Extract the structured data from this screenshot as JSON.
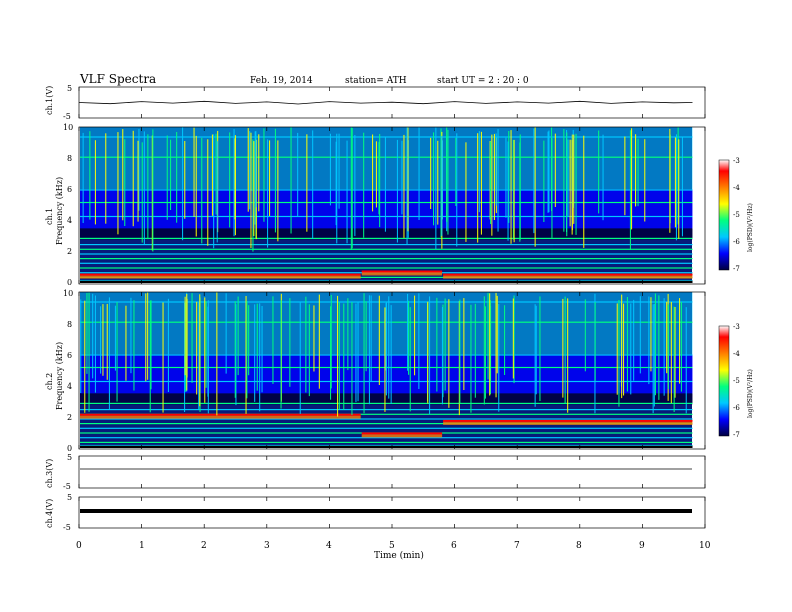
{
  "header": {
    "title": "VLF  Spectra",
    "date": "Feb. 19, 2014",
    "station": "station= ATH",
    "start": "start  UT  =   2  : 20 : 0"
  },
  "chart_data": [
    {
      "type": "line",
      "panel": "ch1-waveform",
      "ylabel": "ch.1(V)",
      "ylim": [
        -5,
        5
      ],
      "yticks": [
        "5",
        "-5"
      ],
      "x": [
        0,
        0.5,
        1,
        1.5,
        2,
        2.5,
        3,
        3.5,
        4,
        4.5,
        5,
        5.5,
        6,
        6.5,
        7,
        7.5,
        8,
        8.5,
        9,
        9.5,
        9.8
      ],
      "y": [
        0.0,
        -0.4,
        0.3,
        -0.2,
        0.4,
        -0.3,
        0.2,
        -0.5,
        0.3,
        -0.2,
        0.1,
        -0.4,
        0.3,
        -0.3,
        0.2,
        -0.2,
        0.4,
        -0.3,
        0.2,
        -0.1,
        0.0
      ]
    },
    {
      "type": "heatmap",
      "panel": "ch1-spectrogram",
      "ylabel": "ch.1 Frequency (kHz)",
      "ylim": [
        0,
        10
      ],
      "yticks": [
        "10",
        "8",
        "6",
        "4",
        "2",
        "0"
      ],
      "colorbar": {
        "label": "log(PSD)(V²/Hz)",
        "range": [
          -7,
          -3
        ],
        "ticks": [
          "-3",
          "-4",
          "-5",
          "-6",
          "-7"
        ],
        "colors": [
          "#000040",
          "#0000ff",
          "#00c8ff",
          "#00ff80",
          "#ffff00",
          "#ff8000",
          "#ff0000",
          "#ffffff"
        ]
      },
      "segments": [
        {
          "x": [
            0,
            4.5
          ],
          "low_band_kHz": 0.6
        },
        {
          "x": [
            4.5,
            5.8
          ],
          "low_band_kHz": 0.8
        },
        {
          "x": [
            5.8,
            9.8
          ],
          "low_band_kHz": 0.6
        }
      ]
    },
    {
      "type": "heatmap",
      "panel": "ch2-spectrogram",
      "ylabel": "ch.2 Frequency (kHz)",
      "ylim": [
        0,
        10
      ],
      "yticks": [
        "10",
        "8",
        "6",
        "4",
        "2",
        "0"
      ],
      "colorbar": {
        "label": "log(PSD)(V²/Hz)",
        "range": [
          -7,
          -3
        ],
        "ticks": [
          "-3",
          "-4",
          "-5",
          "-6",
          "-7"
        ],
        "colors": [
          "#000040",
          "#0000ff",
          "#00c8ff",
          "#00ff80",
          "#ffff00",
          "#ff8000",
          "#ff0000",
          "#ffffff"
        ]
      },
      "segments": [
        {
          "x": [
            0,
            4.5
          ],
          "low_band_kHz": 2.2
        },
        {
          "x": [
            4.5,
            5.8
          ],
          "low_band_kHz": 1.0
        },
        {
          "x": [
            5.8,
            9.8
          ],
          "low_band_kHz": 1.8
        }
      ]
    },
    {
      "type": "line",
      "panel": "ch3-waveform",
      "ylabel": "ch.3(V)",
      "ylim": [
        -5,
        5
      ],
      "yticks": [
        "5",
        "-5"
      ],
      "x": [
        0,
        9.8
      ],
      "y": [
        0,
        0
      ]
    },
    {
      "type": "line",
      "panel": "ch4-waveform",
      "ylabel": "ch.4(V)",
      "ylim": [
        -5,
        5
      ],
      "yticks": [
        "5",
        "-5"
      ],
      "x": [
        0,
        9.8
      ],
      "y": [
        0,
        0
      ]
    }
  ],
  "xaxis": {
    "label": "Time  (min)",
    "range": [
      0,
      10
    ],
    "ticks": [
      "0",
      "1",
      "2",
      "3",
      "4",
      "5",
      "6",
      "7",
      "8",
      "9",
      "10"
    ]
  }
}
